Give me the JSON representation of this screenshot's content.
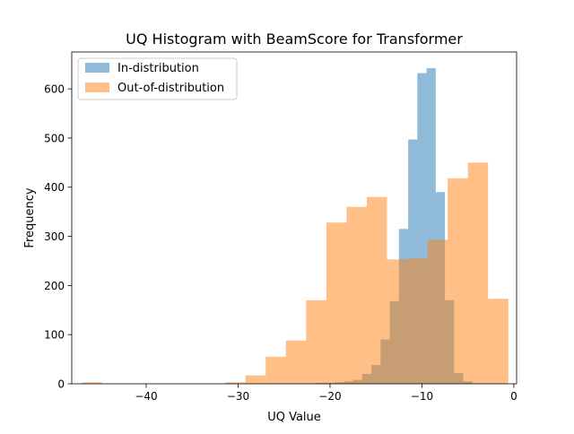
{
  "chart_data": {
    "type": "bar",
    "title": "UQ Histogram with BeamScore for Transformer",
    "xlabel": "UQ Value",
    "ylabel": "Frequency",
    "xlim": [
      -48.1,
      0.3
    ],
    "ylim": [
      0,
      675
    ],
    "xticks": [
      -40,
      -30,
      -20,
      -10,
      0
    ],
    "xtick_labels": [
      "−40",
      "−30",
      "−20",
      "−10",
      "0"
    ],
    "yticks": [
      0,
      100,
      200,
      300,
      400,
      500,
      600
    ],
    "ytick_labels": [
      "0",
      "100",
      "200",
      "300",
      "400",
      "500",
      "600"
    ],
    "legend_position": "top-left",
    "grid": false,
    "bar_alpha": 0.5,
    "series": [
      {
        "name": "In-distribution",
        "color": "#1f77b4",
        "bins": [
          {
            "x0": -31.0,
            "x1": -30.0,
            "count": 1
          },
          {
            "x0": -21.5,
            "x1": -20.5,
            "count": 2
          },
          {
            "x0": -20.5,
            "x1": -19.5,
            "count": 2
          },
          {
            "x0": -19.5,
            "x1": -18.5,
            "count": 3
          },
          {
            "x0": -18.5,
            "x1": -17.5,
            "count": 5
          },
          {
            "x0": -17.5,
            "x1": -16.5,
            "count": 8
          },
          {
            "x0": -16.5,
            "x1": -15.5,
            "count": 20
          },
          {
            "x0": -15.5,
            "x1": -14.5,
            "count": 38
          },
          {
            "x0": -14.5,
            "x1": -13.5,
            "count": 90
          },
          {
            "x0": -13.5,
            "x1": -12.5,
            "count": 168
          },
          {
            "x0": -12.5,
            "x1": -11.5,
            "count": 315
          },
          {
            "x0": -11.5,
            "x1": -10.5,
            "count": 497
          },
          {
            "x0": -10.5,
            "x1": -9.5,
            "count": 632
          },
          {
            "x0": -9.5,
            "x1": -8.5,
            "count": 642
          },
          {
            "x0": -8.5,
            "x1": -7.5,
            "count": 390
          },
          {
            "x0": -7.5,
            "x1": -6.5,
            "count": 170
          },
          {
            "x0": -6.5,
            "x1": -5.5,
            "count": 22
          },
          {
            "x0": -5.5,
            "x1": -4.5,
            "count": 5
          }
        ]
      },
      {
        "name": "Out-of-distribution",
        "color": "#ff7f0e",
        "bins": [
          {
            "x0": -47.0,
            "x1": -44.8,
            "count": 3
          },
          {
            "x0": -31.4,
            "x1": -29.2,
            "count": 3
          },
          {
            "x0": -29.2,
            "x1": -27.0,
            "count": 17
          },
          {
            "x0": -27.0,
            "x1": -24.8,
            "count": 55
          },
          {
            "x0": -24.8,
            "x1": -22.6,
            "count": 88
          },
          {
            "x0": -22.6,
            "x1": -20.4,
            "count": 170
          },
          {
            "x0": -20.4,
            "x1": -18.2,
            "count": 328
          },
          {
            "x0": -18.2,
            "x1": -16.0,
            "count": 360
          },
          {
            "x0": -16.0,
            "x1": -13.8,
            "count": 380
          },
          {
            "x0": -13.8,
            "x1": -11.6,
            "count": 253
          },
          {
            "x0": -11.6,
            "x1": -9.4,
            "count": 255
          },
          {
            "x0": -9.4,
            "x1": -7.2,
            "count": 293
          },
          {
            "x0": -7.2,
            "x1": -5.0,
            "count": 418
          },
          {
            "x0": -5.0,
            "x1": -2.8,
            "count": 450
          },
          {
            "x0": -2.8,
            "x1": -0.6,
            "count": 173
          }
        ]
      }
    ]
  }
}
